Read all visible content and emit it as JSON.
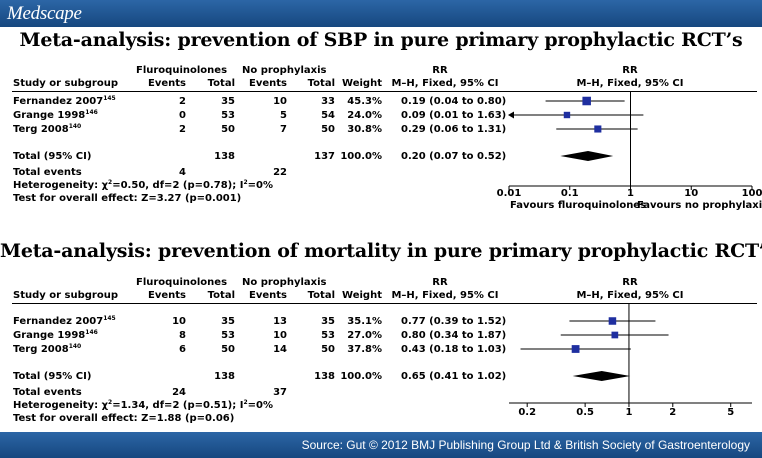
{
  "header": {
    "logo": "Medscape"
  },
  "footer": {
    "source": "Source: Gut © 2012 BMJ Publishing Group Ltd & British Society of Gastroenterology"
  },
  "table_headers": {
    "study": "Study or subgroup",
    "group1": "Fluroquinolones",
    "group2": "No prophylaxis",
    "events": "Events",
    "total": "Total",
    "weight": "Weight",
    "rr": "RR",
    "method": "M–H, Fixed, 95% CI"
  },
  "chart_data": [
    {
      "type": "forest",
      "title": "Meta-analysis: prevention of SBP in pure primary prophylactic RCT’s",
      "xscale": "log",
      "xlim": [
        0.01,
        100
      ],
      "ticks": [
        "0.01",
        "0.1",
        "1",
        "10",
        "100"
      ],
      "tick_values": [
        0.01,
        0.1,
        1,
        10,
        100
      ],
      "xlabel_left": "Favours fluroquinolones",
      "xlabel_right": "Favours no prophylaxis",
      "studies": [
        {
          "name": "Fernandez 2007",
          "ref": "145",
          "e1": "2",
          "t1": "35",
          "e2": "10",
          "t2": "33",
          "weight": "45.3%",
          "rr_text": "0.19 (0.04 to 0.80)",
          "rr": 0.19,
          "lo": 0.04,
          "hi": 0.8,
          "w": 45.3,
          "arrow_left": false
        },
        {
          "name": "Grange 1998",
          "ref": "146",
          "e1": "0",
          "t1": "53",
          "e2": "5",
          "t2": "54",
          "weight": "24.0%",
          "rr_text": "0.09 (0.01 to 1.63)",
          "rr": 0.09,
          "lo": 0.01,
          "hi": 1.63,
          "w": 24.0,
          "arrow_left": true
        },
        {
          "name": "Terg 2008",
          "ref": "140",
          "e1": "2",
          "t1": "50",
          "e2": "7",
          "t2": "50",
          "weight": "30.8%",
          "rr_text": "0.29 (0.06 to 1.31)",
          "rr": 0.29,
          "lo": 0.06,
          "hi": 1.31,
          "w": 30.8,
          "arrow_left": false
        }
      ],
      "total": {
        "label": "Total (95% CI)",
        "t1": "138",
        "t2": "137",
        "weight": "100.0%",
        "rr_text": "0.20 (0.07 to 0.52)",
        "rr": 0.2,
        "lo": 0.07,
        "hi": 0.52
      },
      "total_events": {
        "label": "Total events",
        "e1": "4",
        "e2": "22"
      },
      "heterogeneity": {
        "prefix": "Heterogeneity: ",
        "chi": "χ",
        "sup": "2",
        "rest": "=0.50, df=2 (p=0.78); I",
        "sup2": "2",
        "tail": "=0%"
      },
      "overall": "Test for overall effect: Z=3.27 (p=0.001)"
    },
    {
      "type": "forest",
      "title": "Meta-analysis: prevention of mortality in pure primary prophylactic RCT’s",
      "xscale": "log",
      "xlim": [
        0.15,
        7
      ],
      "ticks": [
        "0.2",
        "0.5",
        "1",
        "2",
        "5"
      ],
      "tick_values": [
        0.2,
        0.5,
        1,
        2,
        5
      ],
      "xlabel_left": "",
      "xlabel_right": "",
      "studies": [
        {
          "name": "Fernandez 2007",
          "ref": "145",
          "e1": "10",
          "t1": "35",
          "e2": "13",
          "t2": "35",
          "weight": "35.1%",
          "rr_text": "0.77 (0.39 to 1.52)",
          "rr": 0.77,
          "lo": 0.39,
          "hi": 1.52,
          "w": 35.1,
          "arrow_left": false
        },
        {
          "name": "Grange 1998",
          "ref": "146",
          "e1": "8",
          "t1": "53",
          "e2": "10",
          "t2": "53",
          "weight": "27.0%",
          "rr_text": "0.80 (0.34 to 1.87)",
          "rr": 0.8,
          "lo": 0.34,
          "hi": 1.87,
          "w": 27.0,
          "arrow_left": false
        },
        {
          "name": "Terg 2008",
          "ref": "140",
          "e1": "6",
          "t1": "50",
          "e2": "14",
          "t2": "50",
          "weight": "37.8%",
          "rr_text": "0.43 (0.18 to 1.03)",
          "rr": 0.43,
          "lo": 0.18,
          "hi": 1.03,
          "w": 37.8,
          "arrow_left": false
        }
      ],
      "total": {
        "label": "Total (95% CI)",
        "t1": "138",
        "t2": "138",
        "weight": "100.0%",
        "rr_text": "0.65 (0.41 to 1.02)",
        "rr": 0.65,
        "lo": 0.41,
        "hi": 1.02
      },
      "total_events": {
        "label": "Total events",
        "e1": "24",
        "e2": "37"
      },
      "heterogeneity": {
        "prefix": "Heterogeneity: ",
        "chi": "χ",
        "sup": "2",
        "rest": "=1.34, df=2 (p=0.51); I",
        "sup2": "2",
        "tail": "=0%"
      },
      "overall": "Test for overall effect: Z=1.88 (p=0.06)"
    }
  ]
}
